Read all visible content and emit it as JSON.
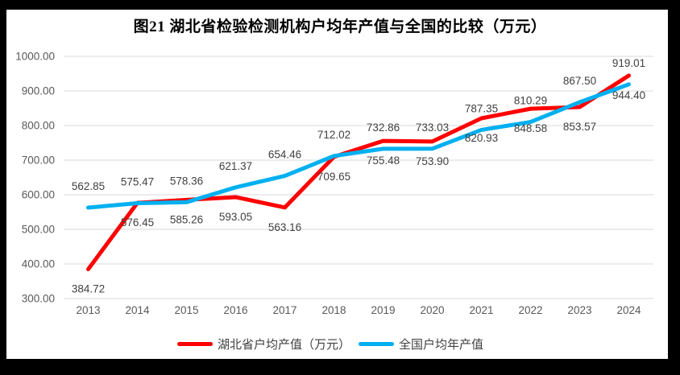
{
  "chart_data": {
    "type": "line",
    "title": "图21  湖北省检验检测机构户均年产值与全国的比较（万元）",
    "categories": [
      "2013",
      "2014",
      "2015",
      "2016",
      "2017",
      "2018",
      "2019",
      "2020",
      "2021",
      "2022",
      "2023",
      "2024"
    ],
    "series": [
      {
        "name": "湖北省户均产值（万元）",
        "color": "#ff0000",
        "label_position": "below",
        "values": [
          384.72,
          576.45,
          585.26,
          593.05,
          563.16,
          709.65,
          755.48,
          753.9,
          820.93,
          848.58,
          853.57,
          944.4
        ]
      },
      {
        "name": "全国户均年产值",
        "color": "#00b0f0",
        "label_position": "above",
        "values": [
          562.85,
          575.47,
          578.36,
          621.37,
          654.46,
          712.02,
          732.86,
          733.03,
          787.35,
          810.29,
          867.5,
          919.01
        ]
      }
    ],
    "xlabel": "",
    "ylabel": "",
    "ylim": [
      300,
      1000
    ],
    "ytick_interval": 100,
    "ytick_labels": [
      "300.00",
      "400.00",
      "500.00",
      "600.00",
      "700.00",
      "800.00",
      "900.00",
      "1000.00"
    ],
    "value_decimals": 2,
    "grid": true,
    "legend_position": "bottom"
  },
  "style_colors": {
    "hubei_line": "#ff0000",
    "national_line": "#00b0f0",
    "gridline": "#d9d9d9",
    "axis_text": "#595959",
    "data_label_text": "#404040",
    "title_text": "#000000",
    "frame": "#000000",
    "background": "#ffffff"
  }
}
